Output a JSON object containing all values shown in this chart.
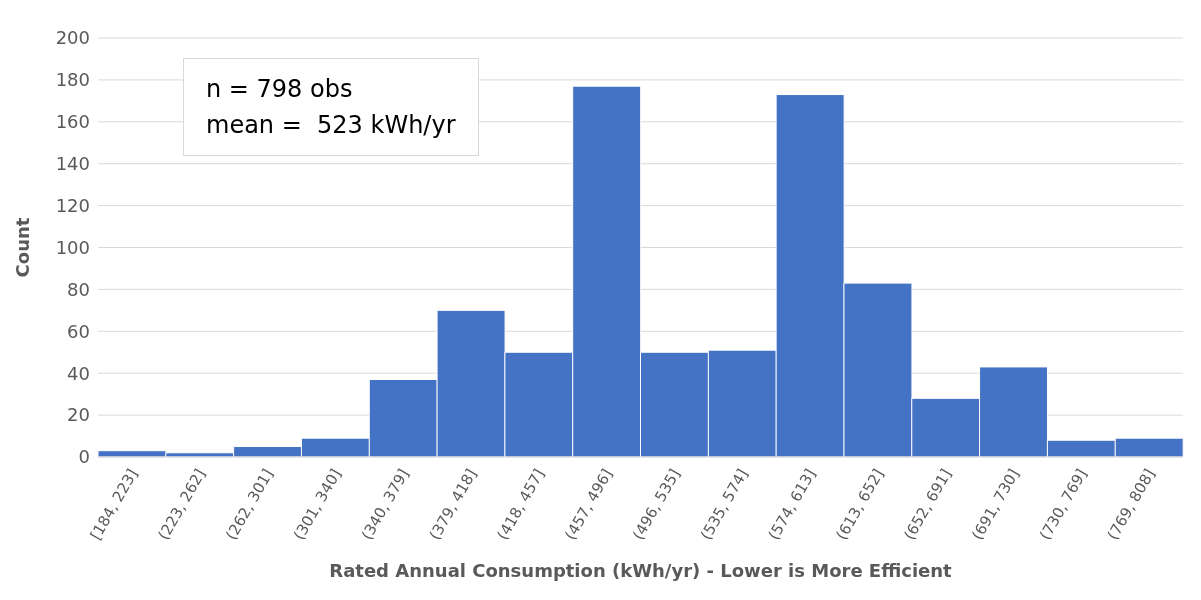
{
  "chart_data": {
    "type": "bar",
    "xlabel": "Rated Annual Consumption (kWh/yr) - Lower is More Efficient",
    "ylabel": "Count",
    "categories": [
      "[184, 223]",
      "(223, 262]",
      "(262, 301]",
      "(301, 340]",
      "(340, 379]",
      "(379, 418]",
      "(418, 457]",
      "(457, 496]",
      "(496, 535]",
      "(535, 574]",
      "(574, 613]",
      "(613, 652]",
      "(652, 691]",
      "(691, 730]",
      "(730, 769]",
      "(769, 808]"
    ],
    "values": [
      3,
      2,
      5,
      9,
      37,
      70,
      50,
      177,
      50,
      51,
      173,
      83,
      28,
      43,
      8,
      9
    ],
    "color": "#4472c4",
    "ylim": [
      0,
      200
    ],
    "yticks": [
      0,
      20,
      40,
      60,
      80,
      100,
      120,
      140,
      160,
      180,
      200
    ],
    "grid": "y",
    "annotations": [
      "n = 798 obs",
      "mean =  523 kWh/yr"
    ]
  }
}
